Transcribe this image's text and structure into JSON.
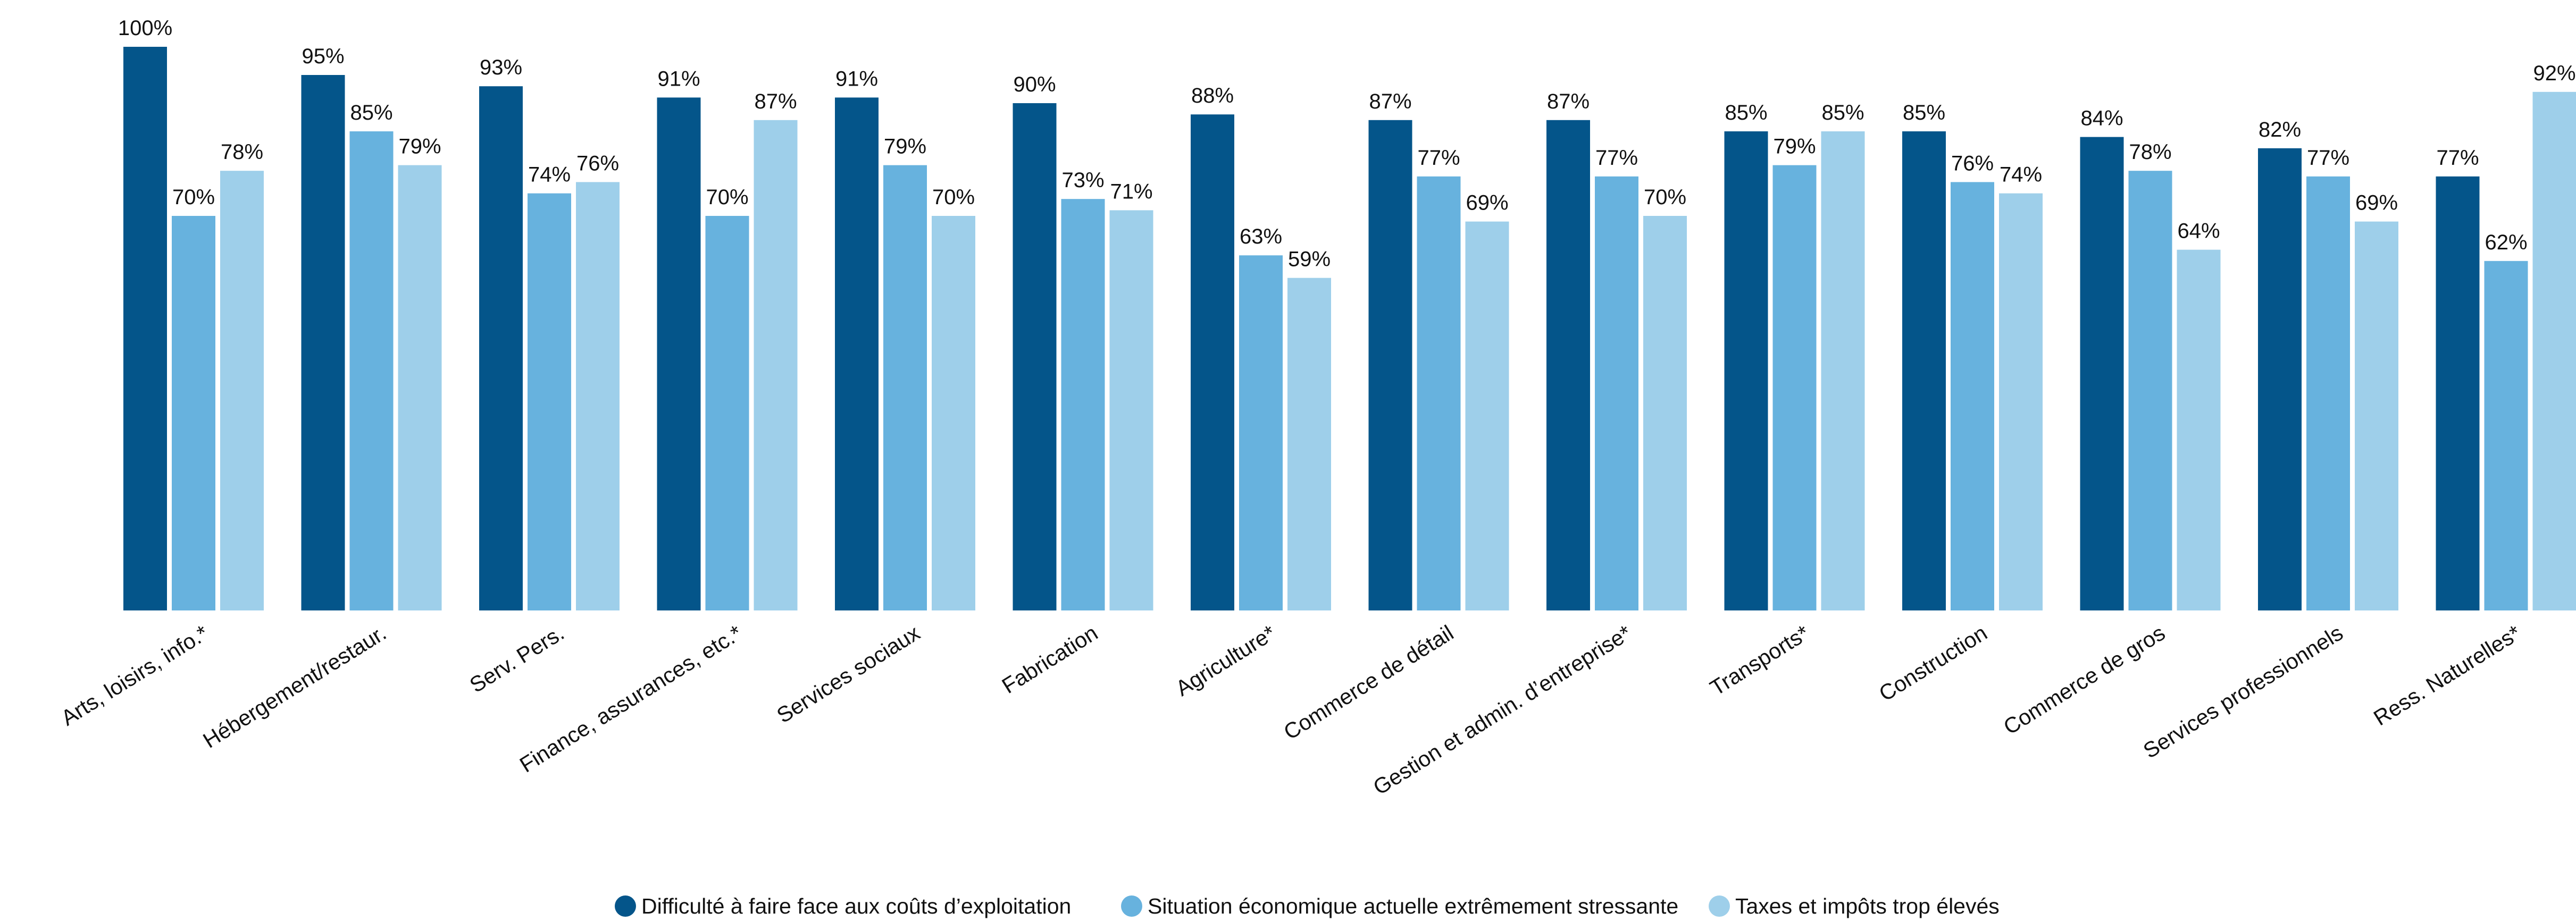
{
  "chart_data": {
    "type": "bar",
    "title": "",
    "xlabel": "",
    "ylabel": "",
    "ylim": [
      0,
      100
    ],
    "grid": false,
    "legend_position": "bottom",
    "categories": [
      "Arts, loisirs, info.*",
      "Hébergement/restaur.",
      "Serv. Pers.",
      "Finance, assurances, etc.*",
      "Services sociaux",
      "Fabrication",
      "Agriculture*",
      "Commerce de détail",
      "Gestion et admin. d’entreprise*",
      "Transports*",
      "Construction",
      "Commerce de gros",
      "Services professionnels",
      "Ress. Naturelles*"
    ],
    "series": [
      {
        "name": "Difficulté à faire face aux coûts d’exploitation",
        "color": "#04558A",
        "values": [
          100,
          95,
          93,
          91,
          91,
          90,
          88,
          87,
          87,
          85,
          85,
          84,
          82,
          77
        ],
        "labels": [
          "100%",
          "95%",
          "93%",
          "91%",
          "91%",
          "90%",
          "88%",
          "87%",
          "87%",
          "85%",
          "85%",
          "84%",
          "82%",
          "77%"
        ]
      },
      {
        "name": "Situation économique actuelle extrêmement stressante",
        "color": "#67B2DE",
        "values": [
          70,
          85,
          74,
          70,
          79,
          73,
          63,
          77,
          77,
          79,
          76,
          78,
          77,
          62
        ],
        "labels": [
          "70%",
          "85%",
          "74%",
          "70%",
          "79%",
          "73%",
          "63%",
          "77%",
          "77%",
          "79%",
          "76%",
          "78%",
          "77%",
          "62%"
        ]
      },
      {
        "name": "Taxes et impôts trop élevés",
        "color": "#9ECFEA",
        "values": [
          78,
          79,
          76,
          87,
          70,
          71,
          59,
          69,
          70,
          85,
          74,
          64,
          69,
          92
        ],
        "labels": [
          "78%",
          "79%",
          "76%",
          "87%",
          "70%",
          "71%",
          "59%",
          "69%",
          "70%",
          "85%",
          "74%",
          "64%",
          "69%",
          "92%"
        ]
      }
    ]
  }
}
